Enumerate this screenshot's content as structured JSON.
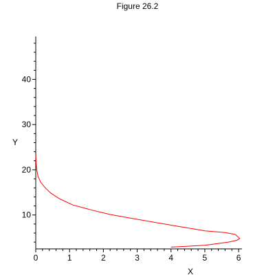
{
  "chart_data": {
    "type": "line",
    "title": "Figure 26.2",
    "xlabel": "X",
    "ylabel": "Y",
    "xlim": [
      0,
      6.1
    ],
    "ylim": [
      2.5,
      49.5
    ],
    "x_ticks": [
      0,
      1,
      2,
      3,
      4,
      5,
      6
    ],
    "y_ticks": [
      10,
      20,
      30,
      40
    ],
    "grid": false,
    "series": [
      {
        "color": "#ff0000",
        "x": [
          4.0,
          4.5,
          5.0,
          5.4,
          5.7,
          5.95,
          6.03,
          5.9,
          5.6,
          5.0,
          4.2,
          3.5,
          2.8,
          2.2,
          1.6,
          1.1,
          0.7,
          0.45,
          0.28,
          0.15,
          0.07,
          0.03,
          0.01,
          0.005
        ],
        "y": [
          2.9,
          3.1,
          3.3,
          3.7,
          4.0,
          4.4,
          4.8,
          5.7,
          6.1,
          6.5,
          7.5,
          8.4,
          9.3,
          10.1,
          11.2,
          12.2,
          13.6,
          14.8,
          16.0,
          17.2,
          18.5,
          20.0,
          21.5,
          23.3
        ]
      }
    ]
  }
}
